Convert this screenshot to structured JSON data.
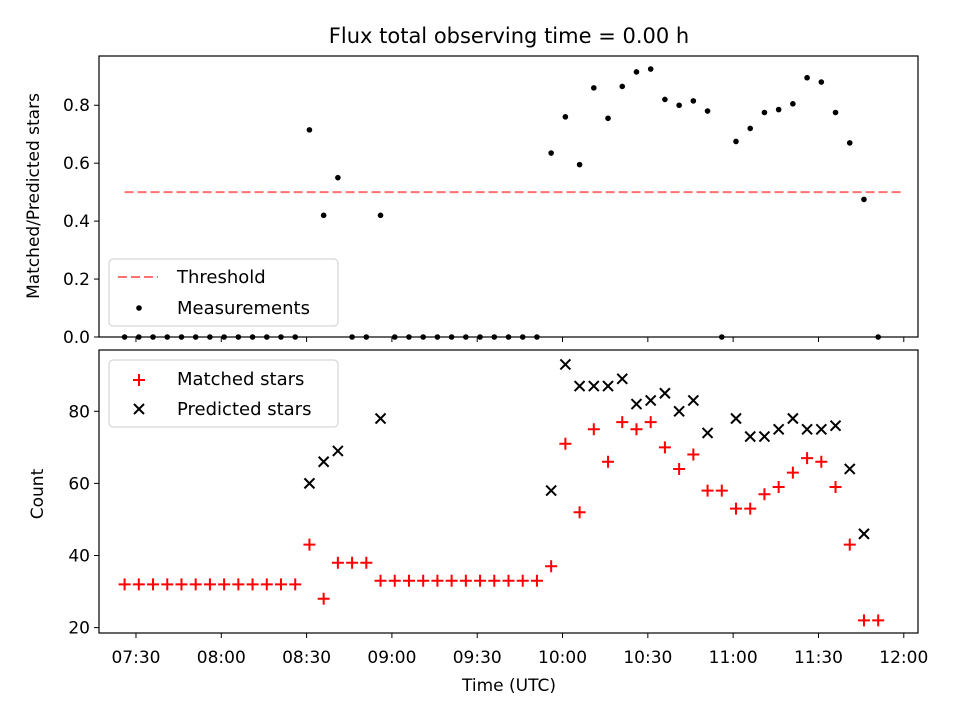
{
  "chart_data": [
    {
      "type": "scatter",
      "title": "Flux total observing time = 0.00 h",
      "xlabel": "",
      "ylabel": "Matched/Predicted stars",
      "ylim": [
        0,
        0.97
      ],
      "yticks": [
        0.0,
        0.2,
        0.4,
        0.6,
        0.8
      ],
      "ytick_labels": [
        "0.0",
        "0.2",
        "0.4",
        "0.6",
        "0.8"
      ],
      "xlim": [
        "07:17",
        "12:05"
      ],
      "legend_position": "lower-left",
      "threshold": {
        "name": "Threshold",
        "value": 0.5,
        "x": [
          "07:26",
          "12:00"
        ],
        "color": "#ff7070",
        "style": "dashed"
      },
      "series": [
        {
          "name": "Measurements",
          "color": "#000000",
          "marker": "dot",
          "points": [
            [
              "07:26",
              0.0
            ],
            [
              "07:31",
              0.0
            ],
            [
              "07:36",
              0.0
            ],
            [
              "07:41",
              0.0
            ],
            [
              "07:46",
              0.0
            ],
            [
              "07:51",
              0.0
            ],
            [
              "07:56",
              0.0
            ],
            [
              "08:01",
              0.0
            ],
            [
              "08:06",
              0.0
            ],
            [
              "08:11",
              0.0
            ],
            [
              "08:16",
              0.0
            ],
            [
              "08:21",
              0.0
            ],
            [
              "08:26",
              0.0
            ],
            [
              "08:31",
              0.715
            ],
            [
              "08:36",
              0.42
            ],
            [
              "08:41",
              0.55
            ],
            [
              "08:46",
              0.0
            ],
            [
              "08:51",
              0.0
            ],
            [
              "08:56",
              0.42
            ],
            [
              "09:01",
              0.0
            ],
            [
              "09:06",
              0.0
            ],
            [
              "09:11",
              0.0
            ],
            [
              "09:16",
              0.0
            ],
            [
              "09:21",
              0.0
            ],
            [
              "09:26",
              0.0
            ],
            [
              "09:31",
              0.0
            ],
            [
              "09:36",
              0.0
            ],
            [
              "09:41",
              0.0
            ],
            [
              "09:46",
              0.0
            ],
            [
              "09:51",
              0.0
            ],
            [
              "09:56",
              0.635
            ],
            [
              "10:01",
              0.76
            ],
            [
              "10:06",
              0.595
            ],
            [
              "10:11",
              0.86
            ],
            [
              "10:16",
              0.755
            ],
            [
              "10:21",
              0.865
            ],
            [
              "10:26",
              0.915
            ],
            [
              "10:31",
              0.925
            ],
            [
              "10:36",
              0.82
            ],
            [
              "10:41",
              0.8
            ],
            [
              "10:46",
              0.815
            ],
            [
              "10:51",
              0.78
            ],
            [
              "10:56",
              0.0
            ],
            [
              "11:01",
              0.675
            ],
            [
              "11:06",
              0.72
            ],
            [
              "11:11",
              0.775
            ],
            [
              "11:16",
              0.785
            ],
            [
              "11:21",
              0.805
            ],
            [
              "11:26",
              0.895
            ],
            [
              "11:31",
              0.88
            ],
            [
              "11:36",
              0.775
            ],
            [
              "11:41",
              0.67
            ],
            [
              "11:46",
              0.475
            ],
            [
              "11:51",
              0.0
            ]
          ]
        }
      ]
    },
    {
      "type": "scatter",
      "title": "",
      "xlabel": "Time (UTC)",
      "ylabel": "Count",
      "ylim": [
        18.5,
        97
      ],
      "yticks": [
        20,
        40,
        60,
        80
      ],
      "ytick_labels": [
        "20",
        "40",
        "60",
        "80"
      ],
      "xlim": [
        "07:17",
        "12:05"
      ],
      "xticks": [
        "07:30",
        "08:00",
        "08:30",
        "09:00",
        "09:30",
        "10:00",
        "10:30",
        "11:00",
        "11:30",
        "12:00"
      ],
      "xtick_labels": [
        "07:30",
        "08:00",
        "08:30",
        "09:00",
        "09:30",
        "10:00",
        "10:30",
        "11:00",
        "11:30",
        "12:00"
      ],
      "legend_position": "upper-left",
      "series": [
        {
          "name": "Matched stars",
          "color": "#ff0000",
          "marker": "plus",
          "points": [
            [
              "07:26",
              32
            ],
            [
              "07:31",
              32
            ],
            [
              "07:36",
              32
            ],
            [
              "07:41",
              32
            ],
            [
              "07:46",
              32
            ],
            [
              "07:51",
              32
            ],
            [
              "07:56",
              32
            ],
            [
              "08:01",
              32
            ],
            [
              "08:06",
              32
            ],
            [
              "08:11",
              32
            ],
            [
              "08:16",
              32
            ],
            [
              "08:21",
              32
            ],
            [
              "08:26",
              32
            ],
            [
              "08:31",
              43
            ],
            [
              "08:36",
              28
            ],
            [
              "08:41",
              38
            ],
            [
              "08:46",
              38
            ],
            [
              "08:51",
              38
            ],
            [
              "08:56",
              33
            ],
            [
              "09:01",
              33
            ],
            [
              "09:06",
              33
            ],
            [
              "09:11",
              33
            ],
            [
              "09:16",
              33
            ],
            [
              "09:21",
              33
            ],
            [
              "09:26",
              33
            ],
            [
              "09:31",
              33
            ],
            [
              "09:36",
              33
            ],
            [
              "09:41",
              33
            ],
            [
              "09:46",
              33
            ],
            [
              "09:51",
              33
            ],
            [
              "09:56",
              37
            ],
            [
              "10:01",
              71
            ],
            [
              "10:06",
              52
            ],
            [
              "10:11",
              75
            ],
            [
              "10:16",
              66
            ],
            [
              "10:21",
              77
            ],
            [
              "10:26",
              75
            ],
            [
              "10:31",
              77
            ],
            [
              "10:36",
              70
            ],
            [
              "10:41",
              64
            ],
            [
              "10:46",
              68
            ],
            [
              "10:51",
              58
            ],
            [
              "10:56",
              58
            ],
            [
              "11:01",
              53
            ],
            [
              "11:06",
              53
            ],
            [
              "11:11",
              57
            ],
            [
              "11:16",
              59
            ],
            [
              "11:21",
              63
            ],
            [
              "11:26",
              67
            ],
            [
              "11:31",
              66
            ],
            [
              "11:36",
              59
            ],
            [
              "11:41",
              43
            ],
            [
              "11:46",
              22
            ],
            [
              "11:51",
              22
            ]
          ]
        },
        {
          "name": "Predicted stars",
          "color": "#000000",
          "marker": "x",
          "points": [
            [
              "08:31",
              60
            ],
            [
              "08:36",
              66
            ],
            [
              "08:41",
              69
            ],
            [
              "08:56",
              78
            ],
            [
              "09:56",
              58
            ],
            [
              "10:01",
              93
            ],
            [
              "10:06",
              87
            ],
            [
              "10:11",
              87
            ],
            [
              "10:16",
              87
            ],
            [
              "10:21",
              89
            ],
            [
              "10:26",
              82
            ],
            [
              "10:31",
              83
            ],
            [
              "10:36",
              85
            ],
            [
              "10:41",
              80
            ],
            [
              "10:46",
              83
            ],
            [
              "10:51",
              74
            ],
            [
              "11:01",
              78
            ],
            [
              "11:06",
              73
            ],
            [
              "11:11",
              73
            ],
            [
              "11:16",
              75
            ],
            [
              "11:21",
              78
            ],
            [
              "11:26",
              75
            ],
            [
              "11:31",
              75
            ],
            [
              "11:36",
              76
            ],
            [
              "11:41",
              64
            ],
            [
              "11:46",
              46
            ]
          ]
        }
      ]
    }
  ]
}
